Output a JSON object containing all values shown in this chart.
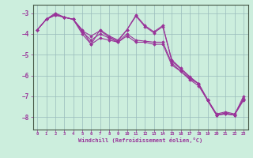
{
  "xlabel": "Windchill (Refroidissement éolien,°C)",
  "bg_color": "#cceedd",
  "line_color": "#993399",
  "grid_color": "#99bbbb",
  "xlim": [
    -0.5,
    23.5
  ],
  "ylim": [
    -8.6,
    -2.6
  ],
  "yticks": [
    -8,
    -7,
    -6,
    -5,
    -4,
    -3
  ],
  "xticks": [
    0,
    1,
    2,
    3,
    4,
    5,
    6,
    7,
    8,
    9,
    10,
    11,
    12,
    13,
    14,
    15,
    16,
    17,
    18,
    19,
    20,
    21,
    22,
    23
  ],
  "series": [
    [
      0,
      1,
      2,
      3,
      4,
      5,
      6,
      7,
      8,
      9,
      10,
      11,
      12,
      13,
      14,
      15,
      16,
      17,
      18,
      19,
      20,
      21,
      22,
      23
    ],
    [
      -3.8,
      -3.3,
      -3.0,
      -3.2,
      -3.3,
      -3.8,
      -4.5,
      -3.8,
      -4.1,
      -4.3,
      -3.8,
      -3.1,
      -3.6,
      -3.9,
      -3.6,
      -5.3,
      -5.7,
      -6.1,
      -6.4,
      -7.2,
      -7.9,
      -7.8,
      -7.9,
      -7.2
    ],
    [
      -3.8,
      -3.3,
      -3.1,
      -3.2,
      -3.3,
      -3.9,
      -4.3,
      -4.0,
      -4.2,
      -4.4,
      -4.0,
      -4.3,
      -4.35,
      -4.4,
      -4.4,
      -5.4,
      -5.8,
      -6.15,
      -6.4,
      -7.2,
      -7.9,
      -7.85,
      -7.9,
      -7.1
    ],
    [
      -3.8,
      -3.3,
      -3.1,
      -3.2,
      -3.3,
      -4.0,
      -4.5,
      -4.2,
      -4.3,
      -4.4,
      -4.1,
      -4.4,
      -4.4,
      -4.5,
      -4.5,
      -5.5,
      -5.8,
      -6.2,
      -6.5,
      -7.2,
      -7.9,
      -7.85,
      -7.9,
      -7.0
    ],
    [
      -3.8,
      -3.3,
      -3.05,
      -3.2,
      -3.3,
      -3.85,
      -4.1,
      -3.85,
      -4.15,
      -4.35,
      -3.8,
      -3.15,
      -3.65,
      -3.95,
      -3.65,
      -5.25,
      -5.65,
      -6.05,
      -6.4,
      -7.15,
      -7.85,
      -7.75,
      -7.85,
      -7.15
    ]
  ]
}
